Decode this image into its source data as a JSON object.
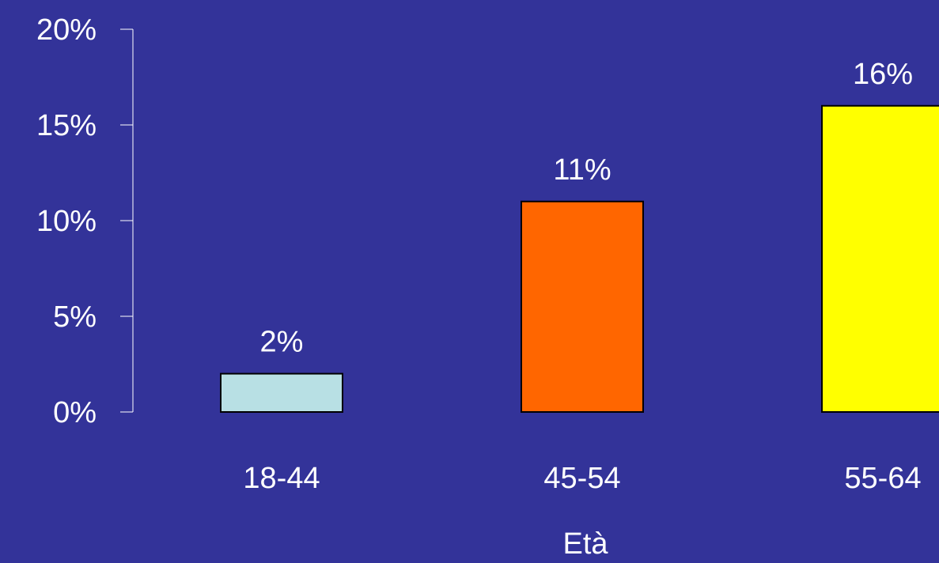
{
  "chart_data": {
    "type": "bar",
    "categories": [
      "18-44",
      "45-54",
      "55-64"
    ],
    "values": [
      2,
      11,
      16
    ],
    "data_labels": [
      "2%",
      "11%",
      "16%"
    ],
    "colors": [
      "#B8E0E4",
      "#FF6600",
      "#FFFF00"
    ],
    "ylim": [
      0,
      20
    ],
    "yticks": [
      0,
      5,
      10,
      15,
      20
    ],
    "ytick_labels": [
      "0%",
      "5%",
      "10%",
      "15%",
      "20%"
    ],
    "xlabel": "Età",
    "ylabel": "",
    "title": "",
    "grid": false,
    "legend": "none",
    "background_color": "#333399",
    "text_color": "#FFFFFF",
    "bar_edge_color": "#000000"
  }
}
